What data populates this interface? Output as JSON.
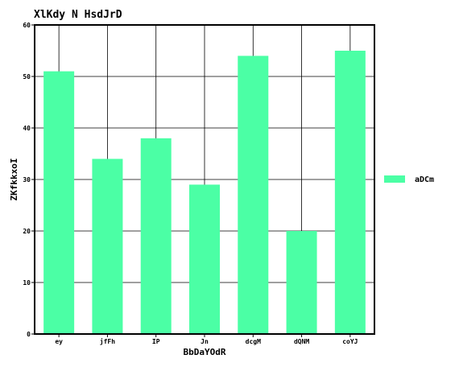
{
  "chart_data": {
    "type": "bar",
    "title": "XlKdy N HsdJrD",
    "xlabel": "BbDaYOdR",
    "ylabel": "ZKfkkxoI",
    "categories": [
      "ey",
      "jfFh",
      "IP",
      "Jn",
      "dcgM",
      "dQNM",
      "coYJ"
    ],
    "series": [
      {
        "name": "aDCm",
        "values": [
          51,
          34,
          38,
          29,
          54,
          20,
          55
        ],
        "color": "#4bffa5"
      }
    ],
    "ylim": [
      0,
      60
    ],
    "yticks": [
      0,
      10,
      20,
      30,
      40,
      50,
      60
    ],
    "grid": true,
    "legend_position": "right"
  }
}
